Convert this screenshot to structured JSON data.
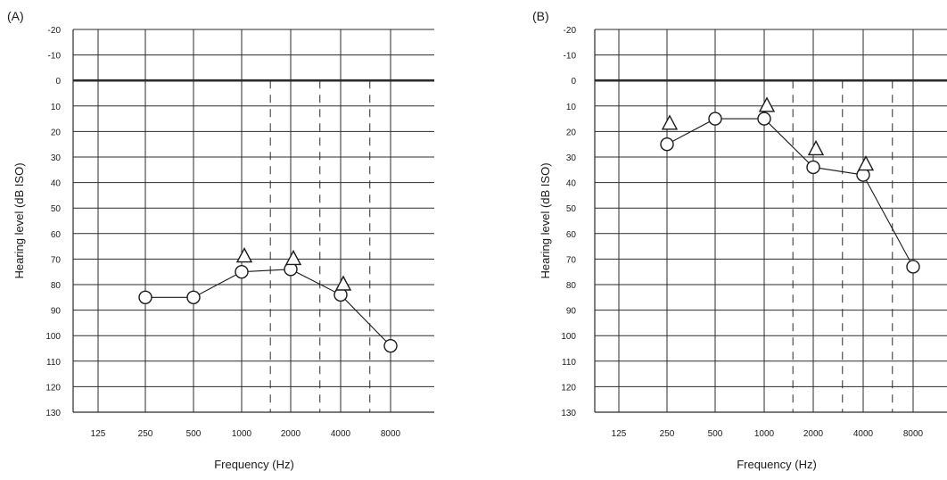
{
  "chart_data": [
    {
      "type": "line",
      "panel_label": "(A)",
      "title": "",
      "xlabel": "Frequency (Hz)",
      "ylabel": "Hearing level (dB ISO)",
      "x_tick_labels": [
        "125",
        "250",
        "500",
        "1000",
        "2000",
        "4000",
        "8000"
      ],
      "y_tick_labels": [
        "-20",
        "-10",
        "0",
        "10",
        "20",
        "30",
        "40",
        "50",
        "60",
        "70",
        "80",
        "90",
        "100",
        "110",
        "120",
        "130"
      ],
      "ylim": [
        -20,
        130
      ],
      "y_inverted": true,
      "x_scale": "log2",
      "grid": true,
      "reference_line_db": 0,
      "dashed_lines_hz": [
        1500,
        3000,
        6000
      ],
      "series": [
        {
          "marker": "circle",
          "connected": true,
          "x": [
            250,
            500,
            1000,
            2000,
            4000,
            8000
          ],
          "values": [
            85,
            85,
            75,
            74,
            84,
            104
          ]
        },
        {
          "marker": "triangle",
          "connected": false,
          "x": [
            1000,
            2000,
            4000
          ],
          "values": [
            69,
            70,
            80
          ]
        }
      ]
    },
    {
      "type": "line",
      "panel_label": "(B)",
      "title": "",
      "xlabel": "Frequency (Hz)",
      "ylabel": "Hearing level (dB ISO)",
      "x_tick_labels": [
        "125",
        "250",
        "500",
        "1000",
        "2000",
        "4000",
        "8000"
      ],
      "y_tick_labels": [
        "-20",
        "-10",
        "0",
        "10",
        "20",
        "30",
        "40",
        "50",
        "60",
        "70",
        "80",
        "90",
        "100",
        "110",
        "120",
        "130"
      ],
      "ylim": [
        -20,
        130
      ],
      "y_inverted": true,
      "x_scale": "log2",
      "grid": true,
      "reference_line_db": 0,
      "dashed_lines_hz": [
        1500,
        3000,
        6000
      ],
      "series": [
        {
          "marker": "circle",
          "connected": true,
          "x": [
            250,
            500,
            1000,
            2000,
            4000,
            8000
          ],
          "values": [
            25,
            15,
            15,
            34,
            37,
            73
          ]
        },
        {
          "marker": "triangle",
          "connected": false,
          "x": [
            250,
            1000,
            2000,
            4000
          ],
          "values": [
            17,
            10,
            27,
            33
          ]
        }
      ]
    }
  ]
}
